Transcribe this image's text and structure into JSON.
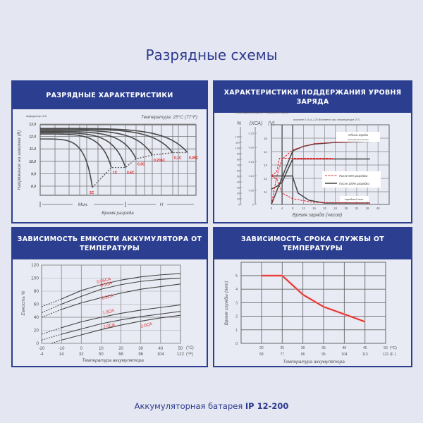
{
  "page_title": "Разрядные схемы",
  "footer": {
    "prefix": "Аккумуляторная батарея ",
    "model": "IP 12-200"
  },
  "colors": {
    "brand": "#2b3e8f",
    "curve": "#4a4a4a",
    "accent": "#e02020"
  },
  "chart_data": [
    {
      "type": "line",
      "title": "РАЗРЯДНЫЕ ХАРАКТЕРИСТИКИ",
      "note": "Температура: 25°С (77°F)",
      "battery_label": "Аккумулятор 12 В",
      "ylabel": "Напряжение на зажимах (В)",
      "xlabel": "Время разряда",
      "x_segments": [
        "Мин.",
        "Н"
      ],
      "yticks": [
        "13.0",
        "12.0",
        "11.0",
        "10.0",
        "9.0",
        "8.0"
      ],
      "ylim": [
        7.7,
        13.0
      ],
      "series": [
        {
          "name": "2C",
          "start_v": 11.8,
          "end_v": 7.9
        },
        {
          "name": "1C",
          "start_v": 12.2,
          "end_v": 9.5
        },
        {
          "name": "0.6C",
          "start_v": 12.3,
          "end_v": 9.5
        },
        {
          "name": "0.3C",
          "start_v": 12.4,
          "end_v": 10.2
        },
        {
          "name": "0.205C",
          "start_v": 12.5,
          "end_v": 10.5
        },
        {
          "name": "0.1C",
          "start_v": 12.6,
          "end_v": 10.7
        },
        {
          "name": "0.05C",
          "start_v": 12.65,
          "end_v": 10.7
        }
      ]
    },
    {
      "type": "line",
      "title": "ХАРАКТЕРИСТИКИ ПОДДЕРЖАНИЯ УРОВНЯ ЗАРЯДА",
      "subtitle": "пусковое 0,10 А-2,25 В/элемент при температуре 25°С",
      "axes_headers": [
        {
          "label": "Объем заряда",
          "unit": "%"
        },
        {
          "label": "Ток заряда",
          "unit": "(ХСА)"
        },
        {
          "label": "Напряжение заряда",
          "unit": "(V)"
        }
      ],
      "pct_ticks": [
        0,
        10,
        20,
        30,
        40,
        50,
        60,
        70,
        80,
        90,
        100,
        110,
        120
      ],
      "current_ticks": [
        "0",
        "0.05",
        "0.10",
        "0.15",
        "0.20",
        "0.25"
      ],
      "volt_ticks": [
        11,
        12,
        13,
        14,
        15
      ],
      "xticks": [
        0,
        4,
        8,
        12,
        16,
        20,
        24,
        28,
        32,
        36,
        40
      ],
      "xlabel": "Время заряда (часов)",
      "labels": {
        "volume": "Объем заряда",
        "volume_sub": "Постоянный 2.25 V/эл",
        "current": "зарядный ток"
      },
      "legend": [
        "После 50% разрядки",
        "После 100% разрядки"
      ],
      "series": [
        {
          "name": "После 100% разрядки",
          "quantity": "voltage",
          "points": [
            [
              0,
              11.2
            ],
            [
              2,
              11.4
            ],
            [
              4,
              11.7
            ],
            [
              6,
              12.6
            ],
            [
              8,
              13.45
            ],
            [
              37,
              13.45
            ]
          ]
        },
        {
          "name": "После 100% разрядки",
          "quantity": "volume",
          "points": [
            [
              0,
              0
            ],
            [
              4,
              48
            ],
            [
              8,
              95
            ],
            [
              12,
              103
            ],
            [
              16,
              107
            ],
            [
              24,
              110
            ],
            [
              37,
              112
            ]
          ]
        },
        {
          "name": "После 100% разрядки",
          "quantity": "current",
          "points": [
            [
              0,
              0.1
            ],
            [
              8,
              0.1
            ],
            [
              8.2,
              0.09
            ],
            [
              10,
              0.04
            ],
            [
              14,
              0.015
            ],
            [
              20,
              0.005
            ],
            [
              37,
              0.005
            ]
          ]
        },
        {
          "name": "После 50% разрядки",
          "quantity": "voltage",
          "points": [
            [
              0,
              12.2
            ],
            [
              2,
              12.5
            ],
            [
              3,
              13.5
            ],
            [
              5,
              13.5
            ],
            [
              23,
              13.5
            ]
          ]
        },
        {
          "name": "После 50% разрядки",
          "quantity": "volume",
          "points": [
            [
              0,
              0
            ],
            [
              2,
              50
            ],
            [
              4,
              80
            ],
            [
              8,
              97
            ],
            [
              16,
              108
            ],
            [
              37,
              113
            ]
          ]
        },
        {
          "name": "После 50% разрядки",
          "quantity": "current",
          "points": [
            [
              0,
              0.1
            ],
            [
              2,
              0.09
            ],
            [
              4,
              0.04
            ],
            [
              8,
              0.02
            ],
            [
              16,
              0.007
            ],
            [
              37,
              0.005
            ]
          ]
        }
      ]
    },
    {
      "type": "line",
      "title": "ЗАВИСИМОСТЬ ЕМКОСТИ АККУМУЛЯТОРА ОТ ТЕМПЕРАТУРЫ",
      "ylabel": "Емкость %",
      "xlabel": "Температура аккумулятора",
      "xticks_c": [
        -20,
        -10,
        0,
        10,
        20,
        30,
        40,
        50
      ],
      "xticks_f": [
        -4,
        14,
        32,
        50,
        68,
        86,
        104,
        122
      ],
      "unit_c": "(°C)",
      "unit_f": "(°F)",
      "yticks": [
        0,
        20,
        40,
        60,
        80,
        100,
        120
      ],
      "ylim": [
        0,
        120
      ],
      "xlim": [
        -20,
        50
      ],
      "series": [
        {
          "name": "0.05CA",
          "points": [
            [
              -20,
              56
            ],
            [
              -10,
              68
            ],
            [
              0,
              81
            ],
            [
              10,
              90
            ],
            [
              20,
              97
            ],
            [
              30,
              102
            ],
            [
              40,
              105
            ],
            [
              50,
              107
            ]
          ]
        },
        {
          "name": "0.1CA",
          "points": [
            [
              -20,
              47
            ],
            [
              -10,
              60
            ],
            [
              0,
              72
            ],
            [
              10,
              83
            ],
            [
              20,
              90
            ],
            [
              30,
              95
            ],
            [
              40,
              98
            ],
            [
              50,
              100
            ]
          ]
        },
        {
          "name": "0.2CA",
          "points": [
            [
              -20,
              40
            ],
            [
              -10,
              52
            ],
            [
              0,
              62
            ],
            [
              10,
              70
            ],
            [
              20,
              77
            ],
            [
              30,
              83
            ],
            [
              40,
              87
            ],
            [
              50,
              91
            ]
          ]
        },
        {
          "name": "1.0CA",
          "points": [
            [
              -20,
              14
            ],
            [
              -10,
              24
            ],
            [
              0,
              33
            ],
            [
              10,
              40
            ],
            [
              20,
              46
            ],
            [
              30,
              51
            ],
            [
              40,
              55
            ],
            [
              50,
              59
            ]
          ]
        },
        {
          "name": "2.0CA",
          "points": [
            [
              -20,
              5
            ],
            [
              -10,
              14
            ],
            [
              0,
              22
            ],
            [
              10,
              30
            ],
            [
              20,
              36
            ],
            [
              30,
              41
            ],
            [
              40,
              45
            ],
            [
              50,
              49
            ]
          ]
        },
        {
          "name": "3.0CA",
          "points": [
            [
              -15,
              0
            ],
            [
              -10,
              5
            ],
            [
              0,
              13
            ],
            [
              10,
              21
            ],
            [
              20,
              28
            ],
            [
              30,
              34
            ],
            [
              40,
              39
            ],
            [
              50,
              43
            ]
          ]
        }
      ]
    },
    {
      "type": "line",
      "title": "ЗАВИСИМОСТЬ СРОКА СЛУЖБЫ ОТ ТЕМПЕРАТУРЫ",
      "ylabel": "Время службы (лет)",
      "xlabel": "Температура аккумулятора",
      "xticks_c": [
        20,
        25,
        30,
        35,
        40,
        45,
        50
      ],
      "xticks_f": [
        68,
        77,
        86,
        95,
        104,
        113,
        122
      ],
      "unit_c": "(°C)",
      "unit_f": "(F )",
      "yticks": [
        0,
        1,
        2,
        3,
        4,
        5
      ],
      "ylim": [
        0,
        6
      ],
      "xlim": [
        15,
        50
      ],
      "series": [
        {
          "points": [
            [
              20,
              5
            ],
            [
              25,
              5
            ],
            [
              30,
              3.6
            ],
            [
              35,
              2.7
            ],
            [
              40,
              2.15
            ],
            [
              45,
              1.6
            ]
          ]
        }
      ]
    }
  ]
}
